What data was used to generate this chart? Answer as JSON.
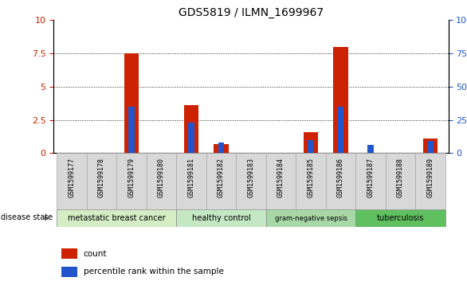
{
  "title": "GDS5819 / ILMN_1699967",
  "samples": [
    "GSM1599177",
    "GSM1599178",
    "GSM1599179",
    "GSM1599180",
    "GSM1599181",
    "GSM1599182",
    "GSM1599183",
    "GSM1599184",
    "GSM1599185",
    "GSM1599186",
    "GSM1599187",
    "GSM1599188",
    "GSM1599189"
  ],
  "count_values": [
    0.0,
    0.0,
    7.5,
    0.0,
    3.6,
    0.7,
    0.0,
    0.0,
    1.6,
    8.0,
    0.05,
    0.0,
    1.1
  ],
  "percentile_values": [
    0.0,
    0.0,
    35.0,
    0.0,
    23.0,
    8.0,
    0.0,
    0.0,
    10.0,
    35.0,
    6.0,
    0.0,
    9.0
  ],
  "disease_groups": [
    {
      "label": "metastatic breast cancer",
      "start": 0,
      "end": 3
    },
    {
      "label": "healthy control",
      "start": 4,
      "end": 6
    },
    {
      "label": "gram-negative sepsis",
      "start": 7,
      "end": 9
    },
    {
      "label": "tuberculosis",
      "start": 10,
      "end": 12
    }
  ],
  "group_colors": [
    "#d4edc4",
    "#c4e8c4",
    "#a8d8a8",
    "#60c060"
  ],
  "ylim_left": [
    0,
    10
  ],
  "ylim_right": [
    0,
    100
  ],
  "yticks_left": [
    0,
    2.5,
    5.0,
    7.5,
    10
  ],
  "yticks_right": [
    0,
    25,
    50,
    75,
    100
  ],
  "bar_color_red": "#cc2200",
  "bar_color_blue": "#2255cc",
  "bg_color": "#ffffff",
  "tick_label_color_left": "#cc2200",
  "tick_label_color_right": "#2255cc",
  "bar_width": 0.5,
  "blue_bar_width": 0.2,
  "legend_count_label": "count",
  "legend_percentile_label": "percentile rank within the sample",
  "disease_state_label": "disease state",
  "sample_box_color": "#d8d8d8",
  "plot_bg": "#ffffff"
}
